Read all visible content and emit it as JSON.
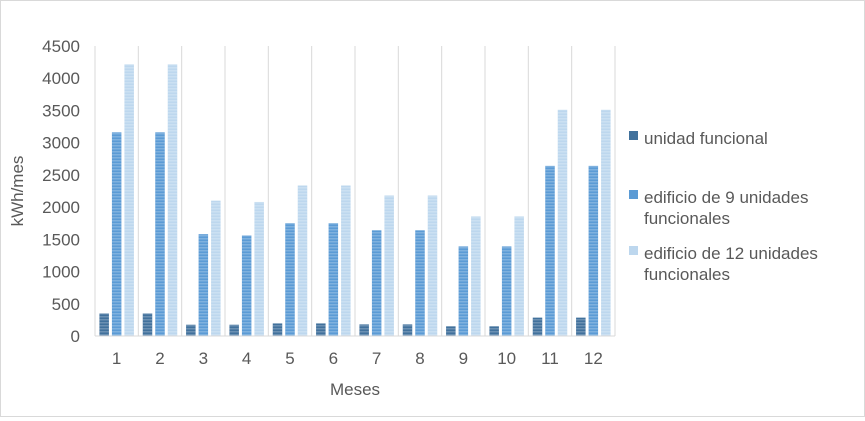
{
  "chart_data": {
    "type": "bar",
    "title": "",
    "xlabel": "Meses",
    "ylabel": "kWh/mes",
    "ylim": [
      0,
      4500
    ],
    "yticks": [
      0,
      500,
      1000,
      1500,
      2000,
      2500,
      3000,
      3500,
      4000,
      4500
    ],
    "grid": "vertical-category-separators",
    "legend_position": "right",
    "categories": [
      "1",
      "2",
      "3",
      "4",
      "5",
      "6",
      "7",
      "8",
      "9",
      "10",
      "11",
      "12"
    ],
    "series": [
      {
        "name": "unidad funcional",
        "color": "#41719c",
        "values": [
          350,
          350,
          175,
          175,
          195,
          195,
          180,
          180,
          150,
          150,
          285,
          285
        ]
      },
      {
        "name": "edificio de 9 unidades funcionales",
        "color": "#5b9bd5",
        "values": [
          3160,
          3160,
          1580,
          1560,
          1750,
          1750,
          1640,
          1640,
          1390,
          1390,
          2640,
          2640
        ]
      },
      {
        "name": "edificio de 12 unidades funcionales",
        "color": "#bdd7ee",
        "values": [
          4215,
          4215,
          2100,
          2080,
          2335,
          2335,
          2180,
          2180,
          1855,
          1855,
          3510,
          3510
        ]
      }
    ]
  }
}
